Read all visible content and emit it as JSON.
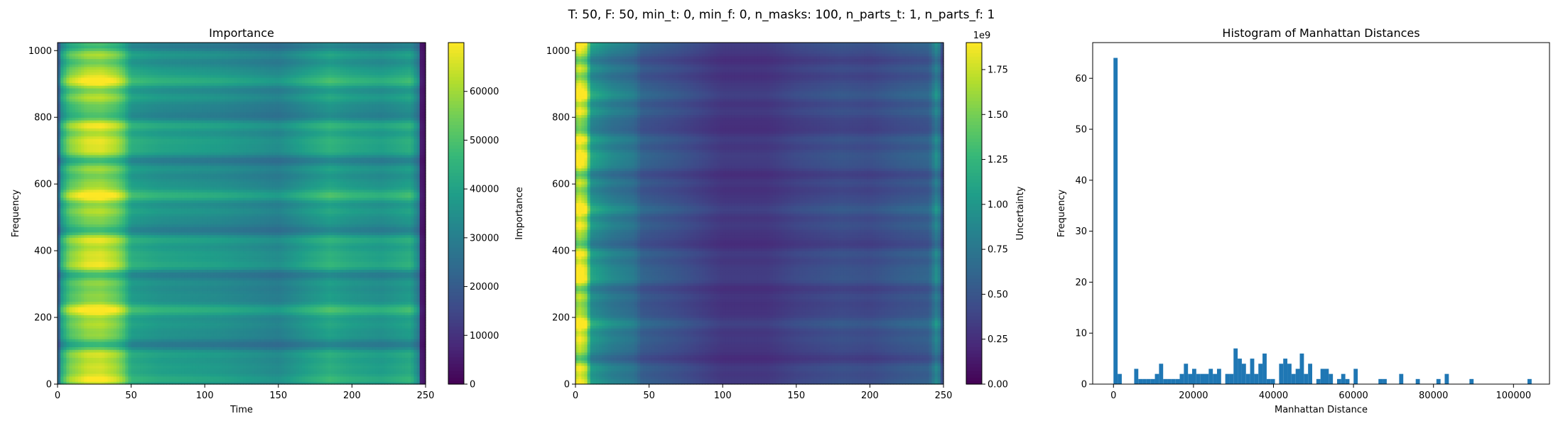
{
  "suptitle": "T: 50, F: 50, min_t: 0, min_f: 0, n_masks: 100, n_parts_t: 1, n_parts_f: 1",
  "chart_data": [
    {
      "type": "heatmap",
      "title": "Importance",
      "xlabel": "Time",
      "ylabel": "Frequency",
      "xlim": [
        0,
        250
      ],
      "ylim": [
        0,
        1024
      ],
      "xticks": [
        "0",
        "50",
        "100",
        "150",
        "200",
        "250"
      ],
      "yticks": [
        "0",
        "200",
        "400",
        "600",
        "800",
        "1000"
      ],
      "colorbar": {
        "label": "Importance",
        "range": [
          0,
          70000
        ],
        "ticks": [
          "0",
          "10000",
          "20000",
          "30000",
          "40000",
          "50000",
          "60000"
        ],
        "colormap": "viridis"
      },
      "time_profile": [
        {
          "t": 0,
          "value": 8000
        },
        {
          "t": 2,
          "value": 38000
        },
        {
          "t": 8,
          "value": 52000
        },
        {
          "t": 20,
          "value": 60000
        },
        {
          "t": 30,
          "value": 61000
        },
        {
          "t": 40,
          "value": 56000
        },
        {
          "t": 45,
          "value": 50000
        },
        {
          "t": 50,
          "value": 40000
        },
        {
          "t": 70,
          "value": 37000
        },
        {
          "t": 90,
          "value": 36000
        },
        {
          "t": 110,
          "value": 35000
        },
        {
          "t": 130,
          "value": 33000
        },
        {
          "t": 150,
          "value": 31000
        },
        {
          "t": 170,
          "value": 37000
        },
        {
          "t": 185,
          "value": 41000
        },
        {
          "t": 200,
          "value": 38000
        },
        {
          "t": 220,
          "value": 36000
        },
        {
          "t": 240,
          "value": 40000
        },
        {
          "t": 245,
          "value": 30000
        },
        {
          "t": 247,
          "value": 5000
        },
        {
          "t": 250,
          "value": 3000
        }
      ]
    },
    {
      "type": "heatmap",
      "title": "",
      "xlabel": "",
      "ylabel": "",
      "xlim": [
        0,
        250
      ],
      "ylim": [
        0,
        1024
      ],
      "xticks": [
        "0",
        "50",
        "100",
        "150",
        "200",
        "250"
      ],
      "yticks": [
        "0",
        "200",
        "400",
        "600",
        "800",
        "1000"
      ],
      "colorbar": {
        "label": "Uncertainty",
        "range": [
          0,
          1.9
        ],
        "ticks": [
          "0.00",
          "0.25",
          "0.50",
          "0.75",
          "1.00",
          "1.25",
          "1.50",
          "1.75"
        ],
        "offset_text": "1e9",
        "colormap": "viridis"
      },
      "time_profile": [
        {
          "t": 0,
          "value": 1.7
        },
        {
          "t": 3,
          "value": 1.8
        },
        {
          "t": 8,
          "value": 1.6
        },
        {
          "t": 10,
          "value": 1.0
        },
        {
          "t": 25,
          "value": 0.8
        },
        {
          "t": 40,
          "value": 0.7
        },
        {
          "t": 45,
          "value": 0.55
        },
        {
          "t": 70,
          "value": 0.45
        },
        {
          "t": 100,
          "value": 0.3
        },
        {
          "t": 130,
          "value": 0.3
        },
        {
          "t": 150,
          "value": 0.38
        },
        {
          "t": 180,
          "value": 0.45
        },
        {
          "t": 200,
          "value": 0.42
        },
        {
          "t": 220,
          "value": 0.5
        },
        {
          "t": 240,
          "value": 0.55
        },
        {
          "t": 246,
          "value": 0.9
        },
        {
          "t": 250,
          "value": 0.3
        }
      ]
    },
    {
      "type": "bar",
      "title": "Histogram of Manhattan Distances",
      "xlabel": "Manhattan Distance",
      "ylabel": "Frequency",
      "xlim": [
        -5200,
        109000
      ],
      "ylim": [
        0,
        67
      ],
      "xticks": [
        0,
        20000,
        40000,
        60000,
        80000,
        100000
      ],
      "xtick_labels": [
        "0",
        "20000",
        "40000",
        "60000",
        "80000",
        "100000"
      ],
      "yticks": [
        0,
        10,
        20,
        30,
        40,
        50,
        60
      ],
      "bin_width": 1035,
      "color": "#1f77b4",
      "bins": [
        {
          "x": 0,
          "count": 64
        },
        {
          "x": 1035,
          "count": 2
        },
        {
          "x": 5175,
          "count": 3
        },
        {
          "x": 6210,
          "count": 1
        },
        {
          "x": 7245,
          "count": 1
        },
        {
          "x": 8280,
          "count": 1
        },
        {
          "x": 9315,
          "count": 1
        },
        {
          "x": 10350,
          "count": 2
        },
        {
          "x": 11385,
          "count": 4
        },
        {
          "x": 12420,
          "count": 1
        },
        {
          "x": 13455,
          "count": 1
        },
        {
          "x": 14490,
          "count": 1
        },
        {
          "x": 15525,
          "count": 1
        },
        {
          "x": 16560,
          "count": 2
        },
        {
          "x": 17595,
          "count": 4
        },
        {
          "x": 18630,
          "count": 2
        },
        {
          "x": 19665,
          "count": 3
        },
        {
          "x": 20700,
          "count": 2
        },
        {
          "x": 21735,
          "count": 2
        },
        {
          "x": 22770,
          "count": 2
        },
        {
          "x": 23805,
          "count": 3
        },
        {
          "x": 24840,
          "count": 2
        },
        {
          "x": 25875,
          "count": 3
        },
        {
          "x": 27945,
          "count": 2
        },
        {
          "x": 28980,
          "count": 2
        },
        {
          "x": 30015,
          "count": 7
        },
        {
          "x": 31050,
          "count": 5
        },
        {
          "x": 32085,
          "count": 4
        },
        {
          "x": 33120,
          "count": 2
        },
        {
          "x": 34155,
          "count": 5
        },
        {
          "x": 35190,
          "count": 2
        },
        {
          "x": 36225,
          "count": 4
        },
        {
          "x": 37260,
          "count": 6
        },
        {
          "x": 38295,
          "count": 1
        },
        {
          "x": 39330,
          "count": 1
        },
        {
          "x": 41400,
          "count": 4
        },
        {
          "x": 42435,
          "count": 5
        },
        {
          "x": 43470,
          "count": 4
        },
        {
          "x": 44505,
          "count": 2
        },
        {
          "x": 45540,
          "count": 3
        },
        {
          "x": 46575,
          "count": 6
        },
        {
          "x": 47610,
          "count": 2
        },
        {
          "x": 48645,
          "count": 4
        },
        {
          "x": 50715,
          "count": 1
        },
        {
          "x": 51750,
          "count": 3
        },
        {
          "x": 52785,
          "count": 3
        },
        {
          "x": 53820,
          "count": 2
        },
        {
          "x": 55890,
          "count": 1
        },
        {
          "x": 56925,
          "count": 2
        },
        {
          "x": 57960,
          "count": 1
        },
        {
          "x": 60030,
          "count": 3
        },
        {
          "x": 66240,
          "count": 1
        },
        {
          "x": 67275,
          "count": 1
        },
        {
          "x": 71415,
          "count": 2
        },
        {
          "x": 75555,
          "count": 1
        },
        {
          "x": 80730,
          "count": 1
        },
        {
          "x": 82800,
          "count": 2
        },
        {
          "x": 88995,
          "count": 1
        },
        {
          "x": 103500,
          "count": 1
        }
      ]
    }
  ]
}
